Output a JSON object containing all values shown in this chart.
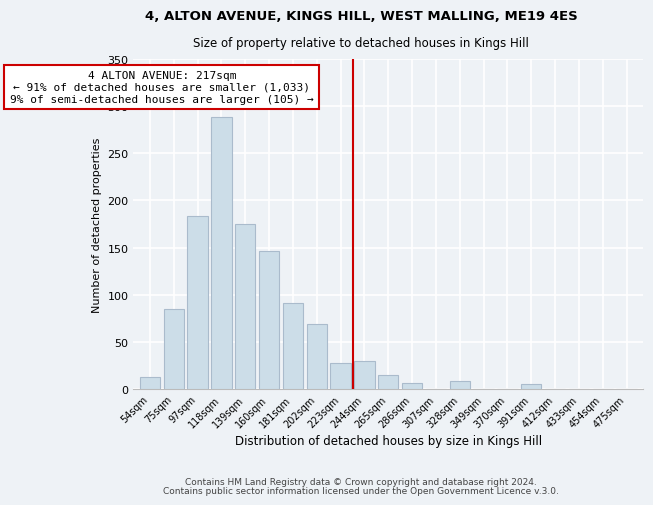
{
  "title1": "4, ALTON AVENUE, KINGS HILL, WEST MALLING, ME19 4ES",
  "title2": "Size of property relative to detached houses in Kings Hill",
  "xlabel": "Distribution of detached houses by size in Kings Hill",
  "ylabel": "Number of detached properties",
  "bar_labels": [
    "54sqm",
    "75sqm",
    "97sqm",
    "118sqm",
    "139sqm",
    "160sqm",
    "181sqm",
    "202sqm",
    "223sqm",
    "244sqm",
    "265sqm",
    "286sqm",
    "307sqm",
    "328sqm",
    "349sqm",
    "370sqm",
    "391sqm",
    "412sqm",
    "433sqm",
    "454sqm",
    "475sqm"
  ],
  "bar_values": [
    13,
    85,
    184,
    288,
    175,
    146,
    91,
    69,
    28,
    30,
    15,
    6,
    0,
    9,
    0,
    0,
    5,
    0,
    0,
    0,
    0
  ],
  "bar_color": "#ccdde8",
  "bar_edge_color": "#aabbcc",
  "property_line_x": 8.5,
  "property_line_color": "#cc0000",
  "annotation_text": "4 ALTON AVENUE: 217sqm\n← 91% of detached houses are smaller (1,033)\n9% of semi-detached houses are larger (105) →",
  "annotation_box_color": "#ffffff",
  "annotation_box_edge_color": "#cc0000",
  "ylim": [
    0,
    350
  ],
  "yticks": [
    0,
    50,
    100,
    150,
    200,
    250,
    300,
    350
  ],
  "footer1": "Contains HM Land Registry data © Crown copyright and database right 2024.",
  "footer2": "Contains public sector information licensed under the Open Government Licence v.3.0.",
  "bg_color": "#eef2f6",
  "plot_bg_color": "#eef2f6",
  "grid_color": "#ffffff",
  "title1_fontsize": 9.5,
  "title2_fontsize": 8.5,
  "xlabel_fontsize": 8.5,
  "ylabel_fontsize": 8,
  "tick_fontsize": 7,
  "annotation_fontsize": 8,
  "footer_fontsize": 6.5
}
